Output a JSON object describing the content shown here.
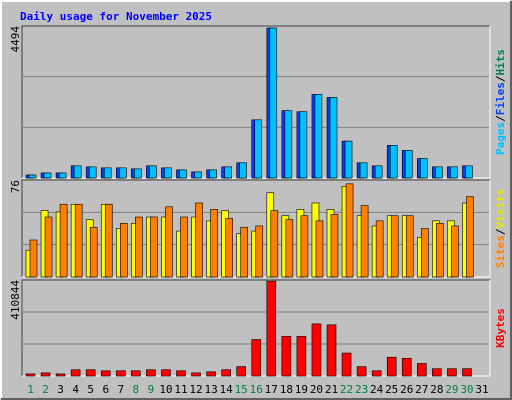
{
  "title": "Daily usage for November 2025",
  "chart_data": [
    {
      "type": "bar",
      "ylim": [
        0,
        4494
      ],
      "yticks": [
        4494
      ],
      "grid_divisions": 3,
      "separator": "/",
      "legend": [
        {
          "text": "Pages",
          "color": "#00c0ff"
        },
        {
          "text": "Files",
          "color": "#0040ff"
        },
        {
          "text": "Hits",
          "color": "#00805c"
        }
      ],
      "series": [
        {
          "color": "#0040ff",
          "values": [
            90,
            150,
            150,
            360,
            330,
            300,
            300,
            270,
            360,
            300,
            240,
            180,
            240,
            330,
            450,
            1720,
            4434,
            1990,
            1960,
            2470,
            2380,
            1090,
            450,
            360,
            965,
            815,
            575,
            330,
            330,
            360,
            0
          ]
        },
        {
          "color": "#00c0ff",
          "values": [
            90,
            150,
            150,
            360,
            330,
            300,
            300,
            270,
            360,
            300,
            240,
            180,
            240,
            330,
            450,
            1720,
            4434,
            1990,
            1960,
            2470,
            2380,
            1090,
            450,
            360,
            965,
            815,
            575,
            330,
            330,
            360,
            0
          ]
        }
      ]
    },
    {
      "type": "bar",
      "ylim": [
        0,
        76
      ],
      "yticks": [
        76
      ],
      "grid_divisions": 3,
      "separator": "/",
      "legend": [
        {
          "text": "Sites",
          "color": "#ff8000"
        },
        {
          "text": "Visits",
          "color": "#e8e800"
        }
      ],
      "series": [
        {
          "color": "#ffff00",
          "values": [
            21,
            52,
            51,
            57,
            45,
            57,
            38,
            42,
            47,
            47,
            36,
            47,
            44,
            52,
            34,
            36,
            66,
            48,
            53,
            58,
            53,
            71,
            48,
            40,
            48,
            48,
            31,
            44,
            44,
            58,
            0
          ]
        },
        {
          "color": "#ff8000",
          "values": [
            29,
            47,
            57,
            57,
            39,
            57,
            42,
            47,
            47,
            55,
            47,
            58,
            53,
            46,
            39,
            40,
            52,
            45,
            48,
            44,
            49,
            73,
            56,
            44,
            48,
            48,
            38,
            42,
            40,
            63,
            0
          ]
        }
      ]
    },
    {
      "type": "bar",
      "ylim": [
        0,
        410844
      ],
      "yticks": [
        410844
      ],
      "grid_divisions": 3,
      "legend": [
        {
          "text": "KBytes",
          "color": "#ff0000"
        }
      ],
      "categories": [
        "1",
        "2",
        "3",
        "4",
        "5",
        "6",
        "7",
        "8",
        "9",
        "10",
        "11",
        "12",
        "13",
        "14",
        "15",
        "16",
        "17",
        "18",
        "19",
        "20",
        "21",
        "22",
        "23",
        "24",
        "25",
        "26",
        "27",
        "28",
        "29",
        "30",
        "31"
      ],
      "category_colors": [
        "#008040",
        "#008040",
        "#000000",
        "#000000",
        "#000000",
        "#000000",
        "#000000",
        "#008040",
        "#008040",
        "#000000",
        "#000000",
        "#000000",
        "#000000",
        "#000000",
        "#008040",
        "#008040",
        "#000000",
        "#000000",
        "#000000",
        "#000000",
        "#000000",
        "#008040",
        "#008040",
        "#000000",
        "#000000",
        "#000000",
        "#000000",
        "#000000",
        "#008040",
        "#008040",
        "#000000"
      ],
      "series": [
        {
          "color": "#ff0000",
          "values": [
            8930,
            13400,
            8930,
            26800,
            26800,
            22300,
            22300,
            22300,
            26800,
            26800,
            22300,
            13400,
            17900,
            26800,
            40200,
            156000,
            406000,
            170000,
            170000,
            223000,
            219000,
            98200,
            40200,
            22300,
            80400,
            75900,
            53600,
            31300,
            31300,
            31300,
            0
          ]
        }
      ]
    }
  ]
}
